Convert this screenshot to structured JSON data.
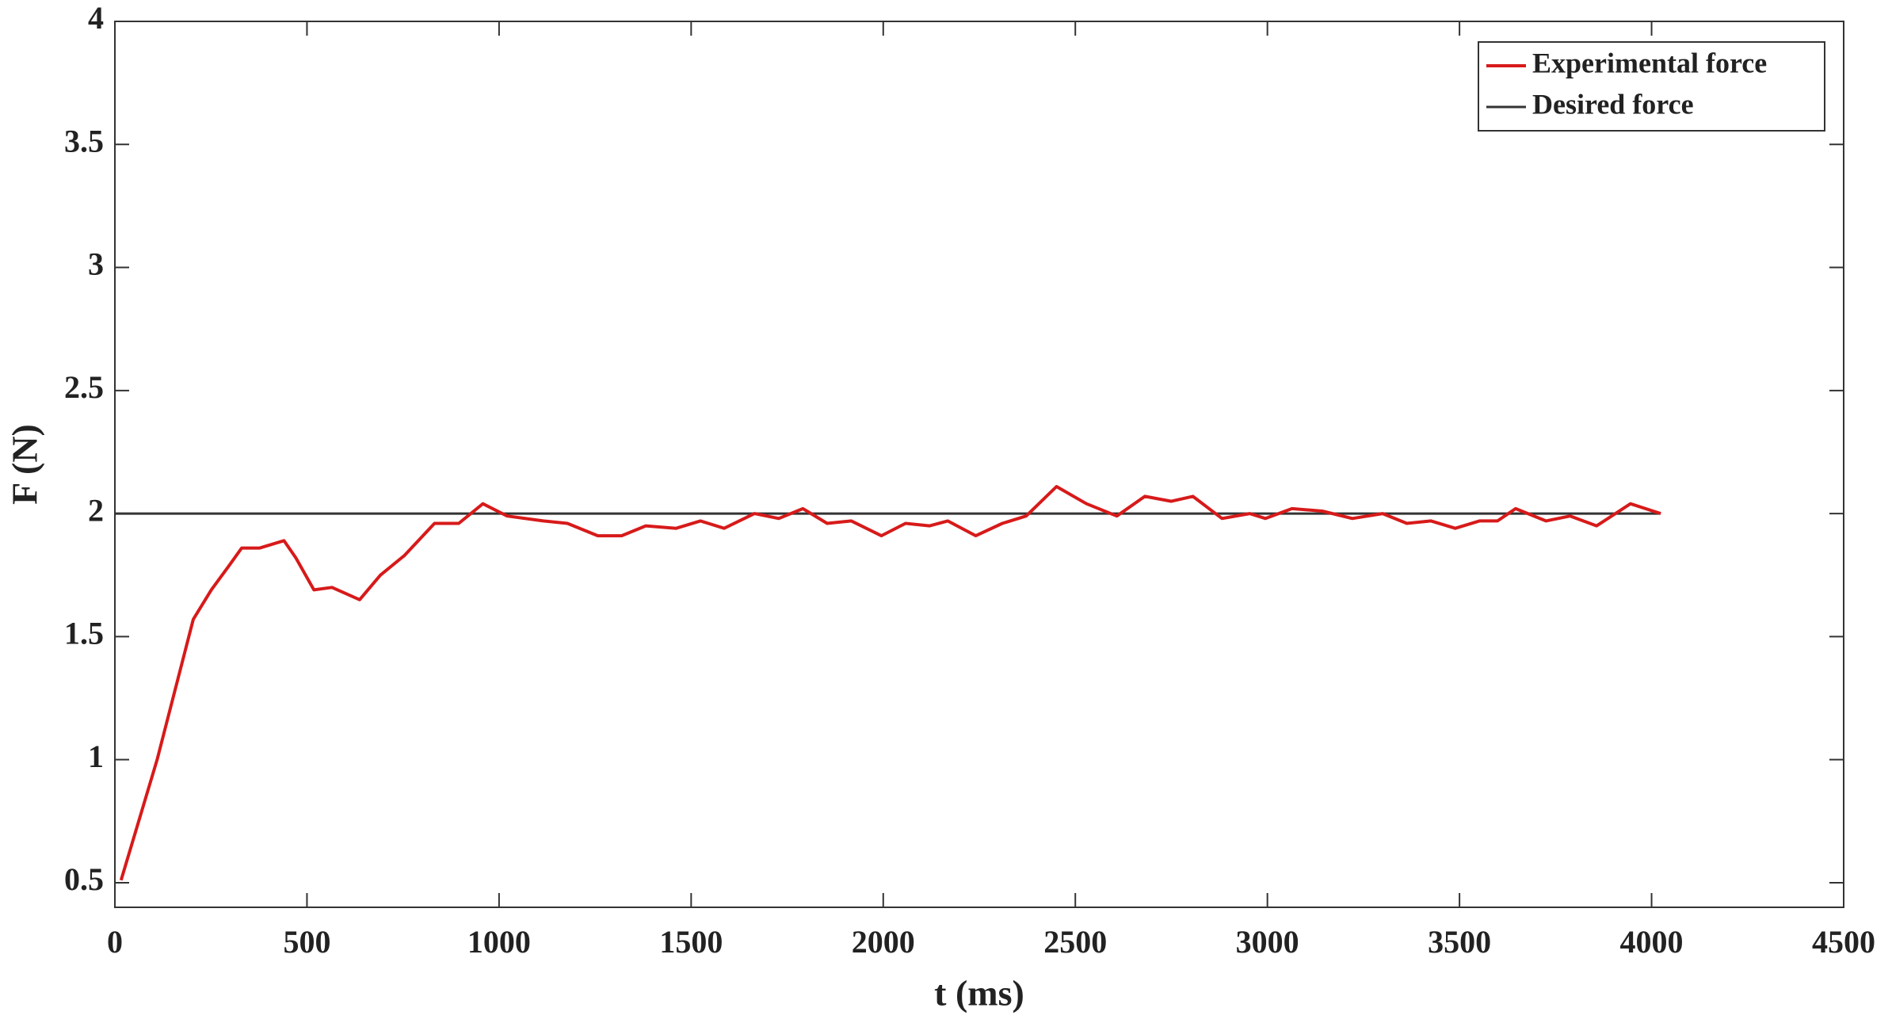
{
  "chart_data": {
    "type": "line",
    "xlabel": "t (ms)",
    "ylabel": "F (N)",
    "xlim": [
      0,
      4500
    ],
    "ylim": [
      0.4,
      4
    ],
    "xticks": [
      0,
      500,
      1000,
      1500,
      2000,
      2500,
      3000,
      3500,
      4000,
      4500
    ],
    "yticks": [
      0.5,
      1,
      1.5,
      2,
      2.5,
      3,
      3.5,
      4
    ],
    "grid": false,
    "legend": "top-right",
    "series": [
      {
        "name": "Experimental force",
        "color": "#d71a1a",
        "x": [
          16,
          110,
          204,
          251,
          298,
          330,
          377,
          440,
          471,
          518,
          565,
          637,
          691,
          754,
          832,
          895,
          958,
          1021,
          1115,
          1178,
          1257,
          1319,
          1382,
          1461,
          1524,
          1586,
          1665,
          1728,
          1791,
          1854,
          1917,
          1995,
          2058,
          2121,
          2168,
          2241,
          2310,
          2372,
          2451,
          2529,
          2608,
          2681,
          2750,
          2806,
          2882,
          2954,
          2995,
          3064,
          3143,
          3221,
          3300,
          3363,
          3426,
          3489,
          3552,
          3599,
          3646,
          3725,
          3788,
          3857,
          3945,
          4024
        ],
        "values": [
          0.51,
          1.0,
          1.57,
          1.69,
          1.79,
          1.86,
          1.86,
          1.89,
          1.82,
          1.69,
          1.7,
          1.65,
          1.75,
          1.83,
          1.96,
          1.96,
          2.04,
          1.99,
          1.97,
          1.96,
          1.91,
          1.91,
          1.95,
          1.94,
          1.97,
          1.94,
          2.0,
          1.98,
          2.02,
          1.96,
          1.97,
          1.91,
          1.96,
          1.95,
          1.97,
          1.91,
          1.96,
          1.99,
          2.11,
          2.04,
          1.99,
          2.07,
          2.05,
          2.07,
          1.98,
          2.0,
          1.98,
          2.02,
          2.01,
          1.98,
          2.0,
          1.96,
          1.97,
          1.94,
          1.97,
          1.97,
          2.02,
          1.97,
          1.99,
          1.95,
          2.04,
          2.0
        ]
      },
      {
        "name": "Desired force",
        "color": "#333333",
        "x": [
          0,
          4020
        ],
        "values": [
          2,
          2
        ]
      }
    ]
  }
}
